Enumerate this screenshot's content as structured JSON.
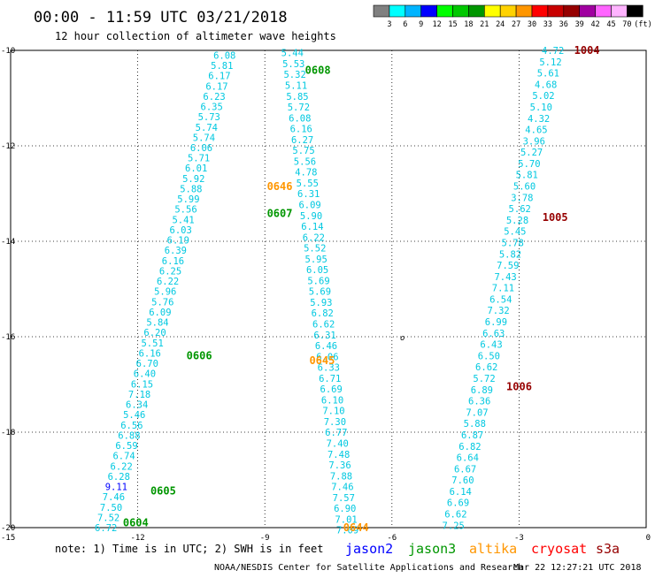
{
  "title": "00:00 - 11:59 UTC 03/21/2018",
  "subtitle": "12 hour collection of altimeter wave heights",
  "legend": {
    "unit": "(ft)",
    "bins": [
      {
        "color": "#808080",
        "label": "3"
      },
      {
        "color": "#00ffff",
        "label": "6"
      },
      {
        "color": "#00b4ff",
        "label": "9"
      },
      {
        "color": "#0000ff",
        "label": "12"
      },
      {
        "color": "#00ff00",
        "label": "15"
      },
      {
        "color": "#00c800",
        "label": "18"
      },
      {
        "color": "#009600",
        "label": "21"
      },
      {
        "color": "#ffff00",
        "label": "24"
      },
      {
        "color": "#ffd200",
        "label": "27"
      },
      {
        "color": "#ff9600",
        "label": "30"
      },
      {
        "color": "#ff0000",
        "label": "33"
      },
      {
        "color": "#c80000",
        "label": "36"
      },
      {
        "color": "#960000",
        "label": "39"
      },
      {
        "color": "#a000a0",
        "label": "42"
      },
      {
        "color": "#ff64ff",
        "label": "45"
      },
      {
        "color": "#ffb4ff",
        "label": "70"
      },
      {
        "color": "#000000",
        "label": ""
      }
    ]
  },
  "note": "note: 1) Time is in UTC; 2) SWH is in feet",
  "satellites": [
    {
      "name": "jason2",
      "color": "#0000ff"
    },
    {
      "name": "jason3",
      "color": "#009600"
    },
    {
      "name": "altika",
      "color": "#ff9600"
    },
    {
      "name": "cryosat",
      "color": "#ff0000"
    },
    {
      "name": "s3a",
      "color": "#960000"
    }
  ],
  "credit": "NOAA/NESDIS Center for Satellite Applications and Research",
  "timestamp": "Mar 22 12:27:21 UTC 2018",
  "marker": "o",
  "chart_data": {
    "type": "scatter",
    "x_unit": "longitude",
    "y_unit": "latitude",
    "xlim": [
      -15,
      0
    ],
    "ylim": [
      -20,
      -10
    ],
    "x_ticks": [
      {
        "v": -15,
        "label": "-15"
      },
      {
        "v": -12,
        "label": "-12"
      },
      {
        "v": -9,
        "label": "-9"
      },
      {
        "v": -6,
        "label": "-6"
      },
      {
        "v": -3,
        "label": "-3"
      },
      {
        "v": 0,
        "label": "0"
      }
    ],
    "y_ticks": [
      {
        "v": -10,
        "label": "-10"
      },
      {
        "v": -12,
        "label": "-12"
      },
      {
        "v": -14,
        "label": "-14"
      },
      {
        "v": -16,
        "label": "-16"
      },
      {
        "v": -18,
        "label": "-18"
      },
      {
        "v": -20,
        "label": "-20"
      }
    ],
    "grid": true,
    "marker_point": {
      "lon": -5.75,
      "lat": -16.0
    },
    "pass_labels": [
      {
        "text": "0608",
        "lon": -8.05,
        "lat": -10.42,
        "color": "#009600"
      },
      {
        "text": "0646",
        "lon": -8.95,
        "lat": -12.85,
        "color": "#ff9600"
      },
      {
        "text": "0607",
        "lon": -8.95,
        "lat": -13.42,
        "color": "#009600"
      },
      {
        "text": "0606",
        "lon": -10.85,
        "lat": -16.4,
        "color": "#009600"
      },
      {
        "text": "0645",
        "lon": -7.95,
        "lat": -16.5,
        "color": "#ff9600"
      },
      {
        "text": "0605",
        "lon": -11.7,
        "lat": -19.23,
        "color": "#009600"
      },
      {
        "text": "0604",
        "lon": -12.35,
        "lat": -19.9,
        "color": "#009600"
      },
      {
        "text": "0644",
        "lon": -7.15,
        "lat": -20.0,
        "color": "#ff9600"
      },
      {
        "text": "1004",
        "lon": -1.7,
        "lat": -10.0,
        "color": "#960000"
      },
      {
        "text": "1005",
        "lon": -2.45,
        "lat": -13.5,
        "color": "#960000"
      },
      {
        "text": "1006",
        "lon": -3.3,
        "lat": -17.05,
        "color": "#960000"
      }
    ],
    "tracks": [
      {
        "pass": "jason3 0604-0608 (descending, west)",
        "start": {
          "lon": -9.95,
          "lat": -10.1
        },
        "end": {
          "lon": -12.75,
          "lat": -20.0
        },
        "swh": [
          "6.08",
          "5.81",
          "6.17",
          "6.17",
          "6.23",
          "6.35",
          "5.73",
          "5.74",
          "5.74",
          "6.06",
          "5.71",
          "6.01",
          "5.92",
          "5.88",
          "5.99",
          "5.56",
          "5.41",
          "6.03",
          "6.19",
          "6.39",
          "6.16",
          "6.25",
          "6.22",
          "5.96",
          "5.76",
          "6.09",
          "5.84",
          "6.20",
          "5.51",
          "6.16",
          "6.70",
          "6.40",
          "6.15",
          "7.18",
          "6.34",
          "5.46",
          "6.56",
          "6.88",
          "6.59",
          "6.74",
          "6.22",
          "6.28",
          "9.11",
          "7.46",
          "7.50",
          "7.52",
          "6.72"
        ]
      },
      {
        "pass": "altika 0644-0646 (ascending, middle)",
        "start": {
          "lon": -8.35,
          "lat": -10.05
        },
        "end": {
          "lon": -7.05,
          "lat": -20.05
        },
        "swh": [
          "5.44",
          "5.53",
          "5.32",
          "5.11",
          "5.85",
          "5.72",
          "6.08",
          "6.16",
          "6.27",
          "5.75",
          "5.56",
          "4.78",
          "5.55",
          "6.31",
          "6.09",
          "5.90",
          "6.14",
          "6.22",
          "5.52",
          "5.95",
          "6.05",
          "5.69",
          "5.69",
          "5.93",
          "6.82",
          "6.62",
          "6.31",
          "6.46",
          "6.06",
          "6.33",
          "6.71",
          "6.69",
          "6.10",
          "7.10",
          "7.30",
          "6.77",
          "7.40",
          "7.48",
          "7.36",
          "7.88",
          "7.46",
          "7.57",
          "6.90",
          "7.01",
          "7.09"
        ]
      },
      {
        "pass": "s3a 1004-1006 (east)",
        "start": {
          "lon": -2.2,
          "lat": -10.0
        },
        "end": {
          "lon": -4.55,
          "lat": -19.95
        },
        "swh": [
          "4.72",
          "5.12",
          "5.61",
          "4.68",
          "5.02",
          "5.10",
          "4.32",
          "4.65",
          "3.96",
          "5.27",
          "5.70",
          "5.81",
          "5.60",
          "3.78",
          "5.62",
          "5.28",
          "5.45",
          "5.78",
          "5.82",
          "7.59",
          "7.43",
          "7.11",
          "6.54",
          "7.32",
          "6.99",
          "6.63",
          "6.43",
          "6.50",
          "6.62",
          "5.72",
          "6.89",
          "6.36",
          "7.07",
          "5.88",
          "6.87",
          "6.82",
          "6.64",
          "6.67",
          "7.60",
          "6.14",
          "6.69",
          "6.62",
          "7.25"
        ]
      }
    ]
  }
}
